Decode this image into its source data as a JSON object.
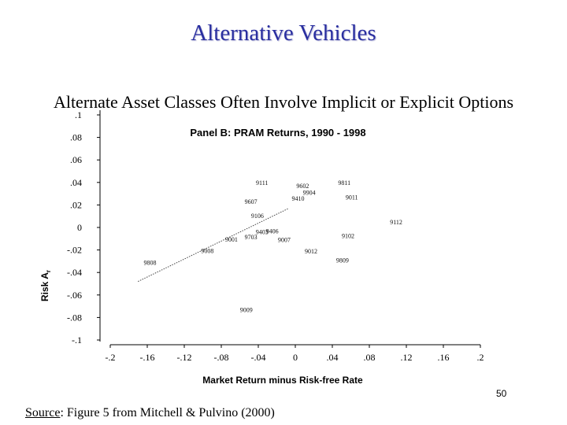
{
  "slide": {
    "title": "Alternative Vehicles",
    "subtitle": "Alternate Asset Classes Often Involve Implicit or Explicit Options",
    "page_number": "50",
    "source_label": "Source",
    "source_text": ": Figure 5 from Mitchell & Pulvino (2000)"
  },
  "chart_data": {
    "type": "scatter",
    "title": "Panel B: PRAM Returns, 1990 - 1998",
    "xlabel": "Market Return minus Risk-free Rate",
    "ylabel": "Risk A",
    "ylabel_subscript": "r",
    "xlim": [
      -0.2,
      0.2
    ],
    "ylim": [
      -0.1,
      0.1
    ],
    "x_ticks": [
      -0.2,
      -0.16,
      -0.12,
      -0.08,
      -0.04,
      0,
      0.04,
      0.08,
      0.12,
      0.16,
      0.2
    ],
    "x_tick_labels": [
      "-.2",
      "-.16",
      "-.12",
      "-.08",
      "-.04",
      "0",
      ".04",
      ".08",
      ".12",
      ".16",
      ".2"
    ],
    "y_ticks": [
      0.1,
      0.08,
      0.06,
      0.04,
      0.02,
      0,
      -0.02,
      -0.04,
      -0.06,
      -0.08,
      -0.1
    ],
    "y_tick_labels": [
      ".1",
      ".08",
      ".06",
      ".04",
      ".02",
      "0",
      "-.02",
      "-.04",
      "-.06",
      "-.08",
      "-.1"
    ],
    "grid": false,
    "fit_line": {
      "x": [
        -0.17,
        -0.007
      ],
      "y": [
        -0.048,
        0.017
      ]
    },
    "points": [
      {
        "label": "9808",
        "x": -0.157,
        "y": -0.031
      },
      {
        "label": "9008",
        "x": -0.095,
        "y": -0.0205
      },
      {
        "label": "9001",
        "x": -0.069,
        "y": -0.0105
      },
      {
        "label": "9703",
        "x": -0.048,
        "y": -0.0085
      },
      {
        "label": "9009",
        "x": -0.053,
        "y": -0.073
      },
      {
        "label": "9111",
        "x": -0.036,
        "y": 0.04
      },
      {
        "label": "9607",
        "x": -0.048,
        "y": 0.023
      },
      {
        "label": "9106",
        "x": -0.041,
        "y": 0.0105
      },
      {
        "label": "9403",
        "x": -0.036,
        "y": -0.004
      },
      {
        "label": "9406",
        "x": -0.025,
        "y": -0.003
      },
      {
        "label": "9007",
        "x": -0.012,
        "y": -0.011
      },
      {
        "label": "9012",
        "x": 0.017,
        "y": -0.021
      },
      {
        "label": "9602",
        "x": 0.008,
        "y": 0.037
      },
      {
        "label": "9904",
        "x": 0.015,
        "y": 0.031
      },
      {
        "label": "9410",
        "x": 0.003,
        "y": 0.026
      },
      {
        "label": "9811",
        "x": 0.053,
        "y": 0.04
      },
      {
        "label": "9011",
        "x": 0.061,
        "y": 0.027
      },
      {
        "label": "9112",
        "x": 0.109,
        "y": 0.005
      },
      {
        "label": "9809",
        "x": 0.051,
        "y": -0.029
      },
      {
        "label": "9102",
        "x": 0.057,
        "y": -0.0075
      }
    ]
  }
}
